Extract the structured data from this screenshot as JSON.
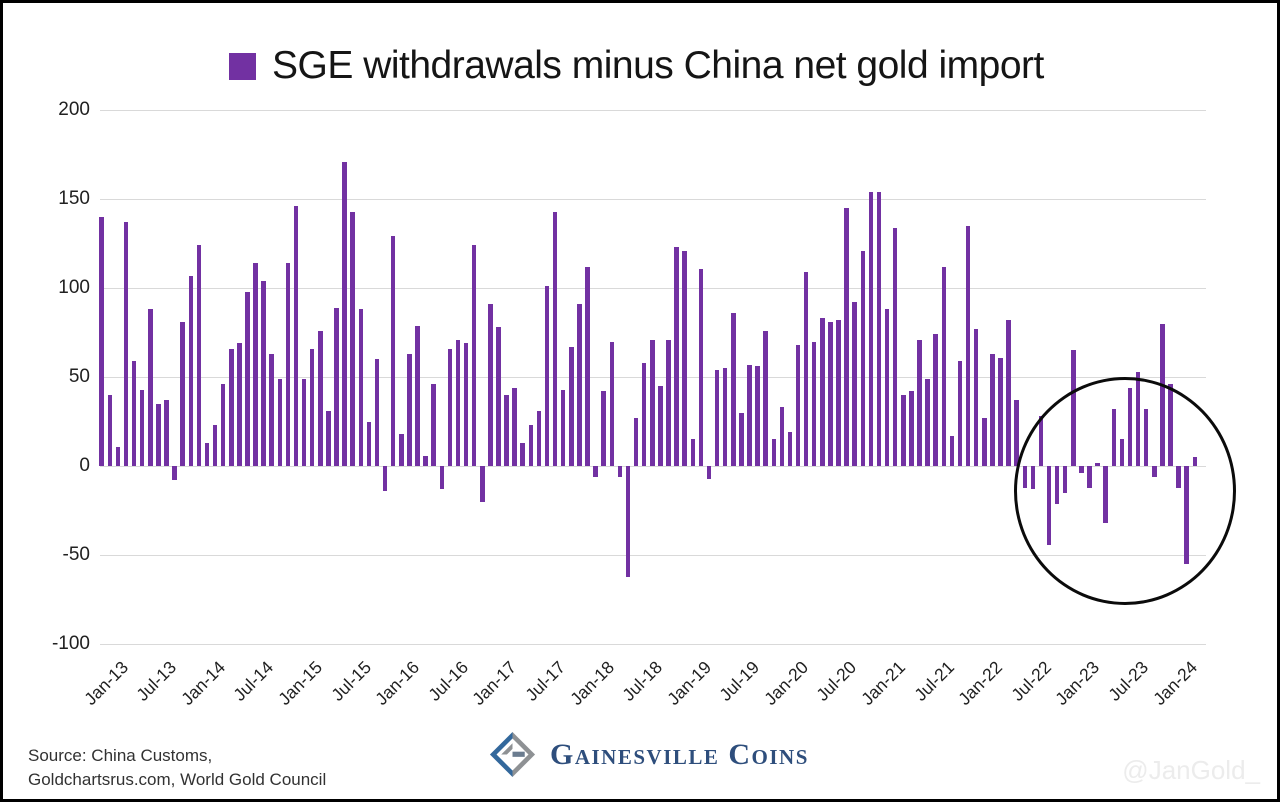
{
  "title": "SGE withdrawals minus China net gold import",
  "legend": {
    "swatch_color": "#7231a2"
  },
  "chart_data": {
    "type": "bar",
    "title": "SGE withdrawals minus China net gold import",
    "series_name": "SGE withdrawals minus China net gold import",
    "xlabel": "",
    "ylabel": "",
    "ylim": [
      -100,
      200
    ],
    "grid": true,
    "bar_color": "#7231a2",
    "gridline_color": "#d9d9d9",
    "y_ticks": [
      200,
      150,
      100,
      50,
      0,
      -50,
      -100
    ],
    "x_tick_labels": [
      "Jan-13",
      "Jul-13",
      "Jan-14",
      "Jul-14",
      "Jan-15",
      "Jul-15",
      "Jan-16",
      "Jul-16",
      "Jan-17",
      "Jul-17",
      "Jan-18",
      "Jul-18",
      "Jan-19",
      "Jul-19",
      "Jan-20",
      "Jul-20",
      "Jan-21",
      "Jul-21",
      "Jan-22",
      "Jul-22",
      "Jan-23",
      "Jul-23",
      "Jan-24"
    ],
    "x": [
      "Jan-13",
      "Feb-13",
      "Mar-13",
      "Apr-13",
      "May-13",
      "Jun-13",
      "Jul-13",
      "Aug-13",
      "Sep-13",
      "Oct-13",
      "Nov-13",
      "Dec-13",
      "Jan-14",
      "Feb-14",
      "Mar-14",
      "Apr-14",
      "May-14",
      "Jun-14",
      "Jul-14",
      "Aug-14",
      "Sep-14",
      "Oct-14",
      "Nov-14",
      "Dec-14",
      "Jan-15",
      "Feb-15",
      "Mar-15",
      "Apr-15",
      "May-15",
      "Jun-15",
      "Jul-15",
      "Aug-15",
      "Sep-15",
      "Oct-15",
      "Nov-15",
      "Dec-15",
      "Jan-16",
      "Feb-16",
      "Mar-16",
      "Apr-16",
      "May-16",
      "Jun-16",
      "Jul-16",
      "Aug-16",
      "Sep-16",
      "Oct-16",
      "Nov-16",
      "Dec-16",
      "Jan-17",
      "Feb-17",
      "Mar-17",
      "Apr-17",
      "May-17",
      "Jun-17",
      "Jul-17",
      "Aug-17",
      "Sep-17",
      "Oct-17",
      "Nov-17",
      "Dec-17",
      "Jan-18",
      "Feb-18",
      "Mar-18",
      "Apr-18",
      "May-18",
      "Jun-18",
      "Jul-18",
      "Aug-18",
      "Sep-18",
      "Oct-18",
      "Nov-18",
      "Dec-18",
      "Jan-19",
      "Feb-19",
      "Mar-19",
      "Apr-19",
      "May-19",
      "Jun-19",
      "Jul-19",
      "Aug-19",
      "Sep-19",
      "Oct-19",
      "Nov-19",
      "Dec-19",
      "Jan-20",
      "Feb-20",
      "Mar-20",
      "Apr-20",
      "May-20",
      "Jun-20",
      "Jul-20",
      "Aug-20",
      "Sep-20",
      "Oct-20",
      "Nov-20",
      "Dec-20",
      "Jan-21",
      "Feb-21",
      "Mar-21",
      "Apr-21",
      "May-21",
      "Jun-21",
      "Jul-21",
      "Aug-21",
      "Sep-21",
      "Oct-21",
      "Nov-21",
      "Dec-21",
      "Jan-22",
      "Feb-22",
      "Mar-22",
      "Apr-22",
      "May-22",
      "Jun-22",
      "Jul-22",
      "Aug-22",
      "Sep-22",
      "Oct-22",
      "Nov-22",
      "Dec-22",
      "Jan-23",
      "Feb-23",
      "Mar-23",
      "Apr-23",
      "May-23",
      "Jun-23",
      "Jul-23",
      "Aug-23",
      "Sep-23",
      "Oct-23",
      "Nov-23",
      "Dec-23",
      "Jan-24",
      "Feb-24",
      "Mar-24",
      "Apr-24"
    ],
    "values": [
      140,
      40,
      11,
      137,
      59,
      43,
      88,
      35,
      37,
      -8,
      81,
      107,
      124,
      13,
      23,
      46,
      66,
      69,
      98,
      114,
      104,
      63,
      49,
      114,
      146,
      49,
      66,
      76,
      31,
      89,
      171,
      143,
      88,
      25,
      60,
      -14,
      129,
      18,
      63,
      79,
      6,
      46,
      -13,
      66,
      71,
      69,
      124,
      -20,
      91,
      78,
      40,
      44,
      13,
      23,
      31,
      101,
      143,
      43,
      67,
      91,
      112,
      -6,
      42,
      70,
      -6,
      -62,
      27,
      58,
      71,
      45,
      71,
      123,
      121,
      15,
      111,
      -7,
      54,
      55,
      86,
      30,
      57,
      56,
      76,
      15,
      33,
      19,
      68,
      109,
      70,
      83,
      81,
      82,
      145,
      92,
      121,
      154,
      154,
      88,
      134,
      40,
      42,
      71,
      49,
      74,
      112,
      17,
      59,
      135,
      77,
      27,
      63,
      61,
      82,
      37,
      -12,
      -13,
      28,
      -44,
      -21,
      -15,
      65,
      -4,
      -12,
      2,
      -32,
      32,
      15,
      44,
      53,
      32,
      -6,
      80,
      46,
      -12,
      -55,
      5
    ],
    "annotation": {
      "type": "circle",
      "label": "",
      "covers": "Jul-22 through Apr-24"
    },
    "legend_position": "top-center"
  },
  "footer": {
    "source_line1": "Source: China Customs,",
    "source_line2": "Goldchartsrus.com, World Gold Council",
    "logo_text": "Gainesville Coins",
    "watermark": "@JanGold_"
  }
}
